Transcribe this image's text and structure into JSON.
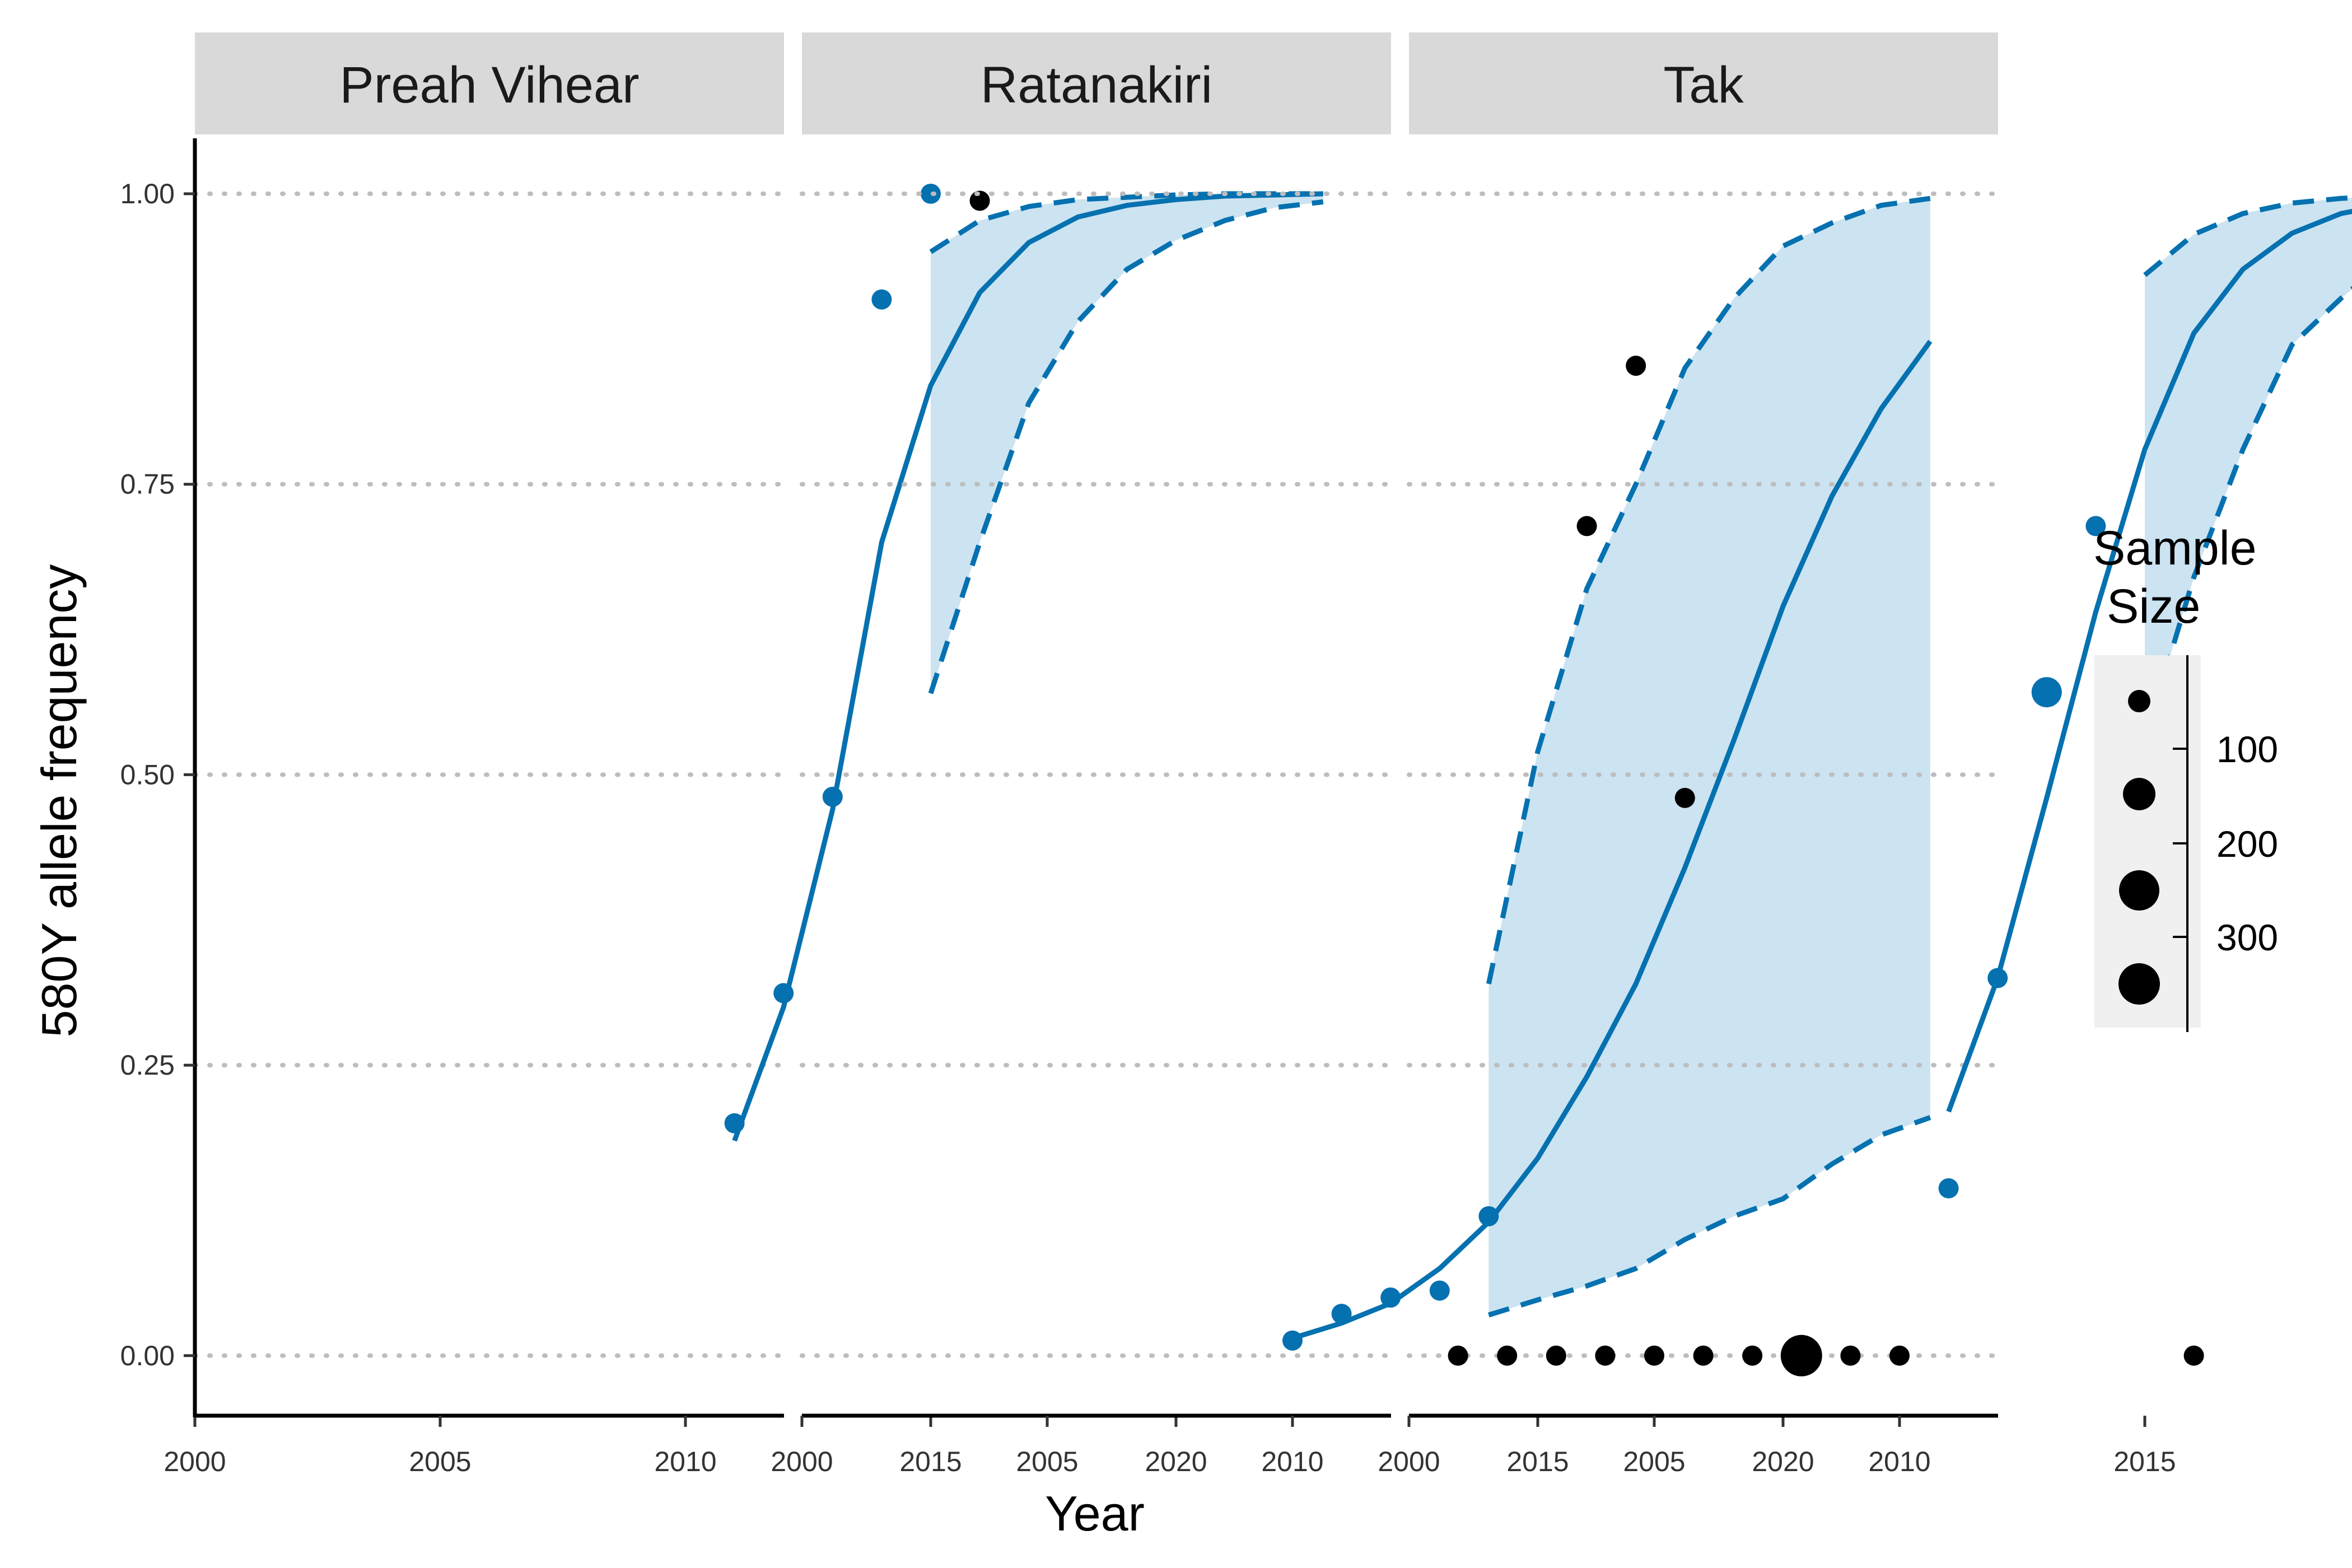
{
  "chart_data": {
    "type": "scatter",
    "xlabel": "Year",
    "ylabel": "580Y allele frequency",
    "xlim": [
      2000,
      2024.5
    ],
    "ylim": [
      -0.05,
      1.05
    ],
    "x_ticks": [
      "2000",
      "2005",
      "2010",
      "2015",
      "2020"
    ],
    "y_ticks": [
      "0.00",
      "0.25",
      "0.50",
      "0.75",
      "1.00"
    ],
    "y_grid": "dotted",
    "legend": {
      "title_line1": "Sample",
      "title_line2": "Size",
      "labels": [
        "100",
        "200",
        "300"
      ],
      "placement": "right"
    },
    "colors": {
      "fitted": "#0571b0",
      "other": "#000000",
      "ribbon": "#cce3f1",
      "strip": "#d9d9d9"
    },
    "panels": [
      {
        "name": "Preah Vihear",
        "points": [
          {
            "x": 2011,
            "y": 0.2,
            "n": 40,
            "color": "fitted"
          },
          {
            "x": 2012,
            "y": 0.312,
            "n": 40,
            "color": "fitted"
          },
          {
            "x": 2013,
            "y": 0.481,
            "n": 40,
            "color": "fitted"
          },
          {
            "x": 2014,
            "y": 0.909,
            "n": 40,
            "color": "fitted"
          },
          {
            "x": 2015,
            "y": 1.0,
            "n": 40,
            "color": "fitted"
          },
          {
            "x": 2016,
            "y": 0.994,
            "n": 40,
            "color": "other"
          }
        ],
        "fit_line": [
          [
            2011,
            0.185
          ],
          [
            2012,
            0.3
          ],
          [
            2013,
            0.47
          ],
          [
            2014,
            0.7
          ],
          [
            2015,
            0.835
          ],
          [
            2016,
            0.915
          ],
          [
            2017,
            0.958
          ],
          [
            2018,
            0.98
          ],
          [
            2019,
            0.99
          ],
          [
            2020,
            0.995
          ],
          [
            2021,
            0.998
          ],
          [
            2022,
            0.999
          ],
          [
            2023,
            1.0
          ]
        ],
        "ribbon_upper": [
          [
            2015,
            0.95
          ],
          [
            2016,
            0.977
          ],
          [
            2017,
            0.989
          ],
          [
            2018,
            0.995
          ],
          [
            2019,
            0.997
          ],
          [
            2020,
            0.999
          ],
          [
            2021,
            1.0
          ],
          [
            2022,
            1.0
          ],
          [
            2023,
            1.0
          ]
        ],
        "ribbon_lower": [
          [
            2015,
            0.57
          ],
          [
            2016,
            0.7
          ],
          [
            2017,
            0.82
          ],
          [
            2018,
            0.89
          ],
          [
            2019,
            0.935
          ],
          [
            2020,
            0.96
          ],
          [
            2021,
            0.977
          ],
          [
            2022,
            0.988
          ],
          [
            2023,
            0.993
          ]
        ]
      },
      {
        "name": "Ratanakiri",
        "points": [
          {
            "x": 2010,
            "y": 0.013,
            "n": 40,
            "color": "fitted"
          },
          {
            "x": 2011,
            "y": 0.036,
            "n": 40,
            "color": "fitted"
          },
          {
            "x": 2012,
            "y": 0.05,
            "n": 40,
            "color": "fitted"
          },
          {
            "x": 2013,
            "y": 0.056,
            "n": 40,
            "color": "fitted"
          },
          {
            "x": 2014,
            "y": 0.12,
            "n": 40,
            "color": "fitted"
          },
          {
            "x": 2016,
            "y": 0.714,
            "n": 40,
            "color": "other"
          },
          {
            "x": 2017,
            "y": 0.852,
            "n": 40,
            "color": "other"
          },
          {
            "x": 2018,
            "y": 0.48,
            "n": 40,
            "color": "other"
          }
        ],
        "fit_line": [
          [
            2010,
            0.015
          ],
          [
            2011,
            0.028
          ],
          [
            2012,
            0.045
          ],
          [
            2013,
            0.075
          ],
          [
            2014,
            0.115
          ],
          [
            2015,
            0.17
          ],
          [
            2016,
            0.24
          ],
          [
            2017,
            0.32
          ],
          [
            2018,
            0.42
          ],
          [
            2019,
            0.53
          ],
          [
            2020,
            0.645
          ],
          [
            2021,
            0.74
          ],
          [
            2022,
            0.815
          ],
          [
            2023,
            0.873
          ]
        ],
        "ribbon_upper": [
          [
            2014,
            0.32
          ],
          [
            2015,
            0.52
          ],
          [
            2016,
            0.66
          ],
          [
            2017,
            0.75
          ],
          [
            2018,
            0.85
          ],
          [
            2019,
            0.91
          ],
          [
            2020,
            0.955
          ],
          [
            2021,
            0.975
          ],
          [
            2022,
            0.99
          ],
          [
            2023,
            0.996
          ]
        ],
        "ribbon_lower": [
          [
            2014,
            0.035
          ],
          [
            2015,
            0.048
          ],
          [
            2016,
            0.06
          ],
          [
            2017,
            0.075
          ],
          [
            2018,
            0.1
          ],
          [
            2019,
            0.12
          ],
          [
            2020,
            0.135
          ],
          [
            2021,
            0.165
          ],
          [
            2022,
            0.19
          ],
          [
            2023,
            0.205
          ]
        ]
      },
      {
        "name": "Tak",
        "points": [
          {
            "x": 2001,
            "y": 0.0,
            "n": 40,
            "color": "other"
          },
          {
            "x": 2002,
            "y": 0.0,
            "n": 40,
            "color": "other"
          },
          {
            "x": 2003,
            "y": 0.0,
            "n": 40,
            "color": "other"
          },
          {
            "x": 2004,
            "y": 0.0,
            "n": 40,
            "color": "other"
          },
          {
            "x": 2005,
            "y": 0.0,
            "n": 40,
            "color": "other"
          },
          {
            "x": 2006,
            "y": 0.0,
            "n": 40,
            "color": "other"
          },
          {
            "x": 2007,
            "y": 0.0,
            "n": 40,
            "color": "other"
          },
          {
            "x": 2008,
            "y": 0.0,
            "n": 340,
            "color": "other"
          },
          {
            "x": 2009,
            "y": 0.0,
            "n": 40,
            "color": "other"
          },
          {
            "x": 2010,
            "y": 0.0,
            "n": 40,
            "color": "other"
          },
          {
            "x": 2011,
            "y": 0.144,
            "n": 40,
            "color": "fitted"
          },
          {
            "x": 2012,
            "y": 0.325,
            "n": 40,
            "color": "fitted"
          },
          {
            "x": 2013,
            "y": 0.571,
            "n": 110,
            "color": "fitted"
          },
          {
            "x": 2014,
            "y": 0.714,
            "n": 40,
            "color": "fitted"
          },
          {
            "x": 2015,
            "y": 0.333,
            "n": 40,
            "color": "fitted"
          },
          {
            "x": 2016,
            "y": 0.0,
            "n": 40,
            "color": "other"
          }
        ],
        "fit_line": [
          [
            2011,
            0.21
          ],
          [
            2012,
            0.325
          ],
          [
            2013,
            0.48
          ],
          [
            2014,
            0.64
          ],
          [
            2015,
            0.78
          ],
          [
            2016,
            0.88
          ],
          [
            2017,
            0.935
          ],
          [
            2018,
            0.966
          ],
          [
            2019,
            0.983
          ],
          [
            2020,
            0.991
          ],
          [
            2021,
            0.996
          ],
          [
            2022,
            0.998
          ],
          [
            2023,
            0.999
          ]
        ],
        "ribbon_upper": [
          [
            2015,
            0.93
          ],
          [
            2016,
            0.965
          ],
          [
            2017,
            0.983
          ],
          [
            2018,
            0.992
          ],
          [
            2019,
            0.996
          ],
          [
            2020,
            0.998
          ],
          [
            2021,
            0.999
          ],
          [
            2022,
            1.0
          ],
          [
            2023,
            1.0
          ]
        ],
        "ribbon_lower": [
          [
            2015,
            0.53
          ],
          [
            2016,
            0.67
          ],
          [
            2017,
            0.78
          ],
          [
            2018,
            0.87
          ],
          [
            2019,
            0.91
          ],
          [
            2020,
            0.945
          ],
          [
            2021,
            0.965
          ],
          [
            2022,
            0.98
          ],
          [
            2023,
            0.99
          ]
        ]
      }
    ]
  }
}
